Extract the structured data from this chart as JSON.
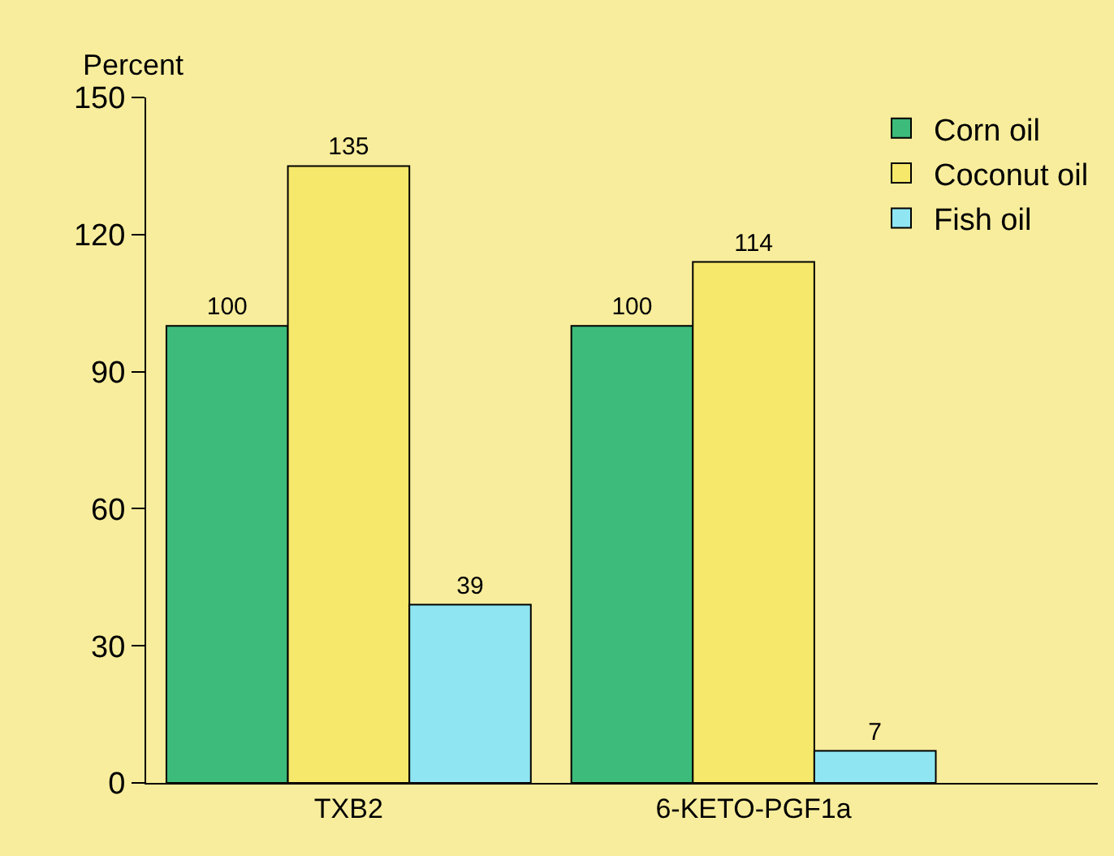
{
  "chart_data": {
    "type": "bar",
    "ylabel": "Percent",
    "categories": [
      "TXB2",
      "6-KETO-PGF1a"
    ],
    "series": [
      {
        "name": "Corn oil",
        "color": "#3dbb7a",
        "values": [
          100,
          100
        ]
      },
      {
        "name": "Coconut oil",
        "color": "#f6e86a",
        "values": [
          135,
          114
        ]
      },
      {
        "name": "Fish oil",
        "color": "#8fe6f2",
        "values": [
          39,
          7
        ]
      }
    ],
    "ylim": [
      0,
      150
    ],
    "yticks": [
      0,
      30,
      60,
      90,
      120,
      150
    ],
    "data_labels": true,
    "legend": "top right",
    "grid": false
  }
}
